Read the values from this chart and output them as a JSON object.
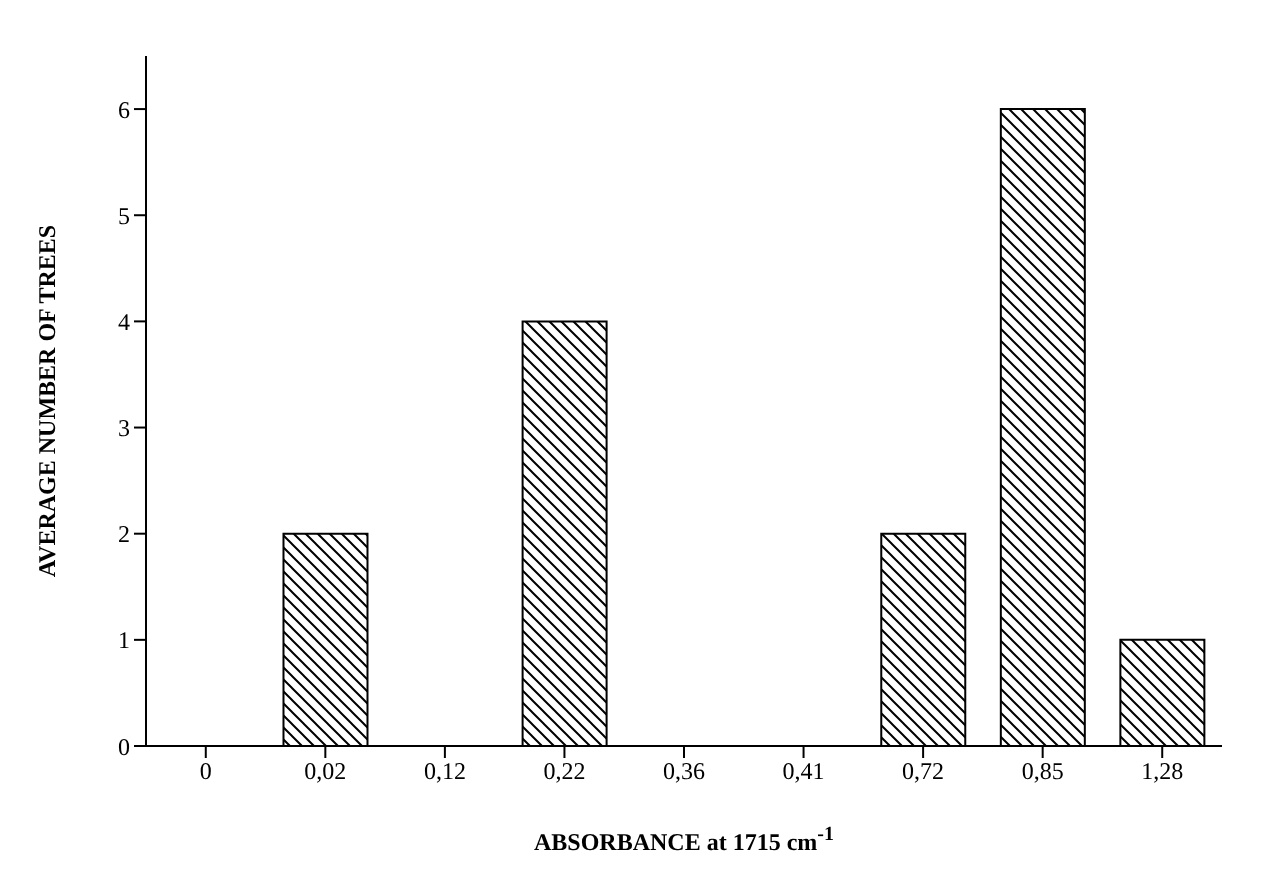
{
  "chart_data": {
    "type": "bar",
    "xlabel": "ABSORBANCE at 1715  cm$^{-1}$",
    "ylabel": "AVERAGE NUMBER OF TREES",
    "categories": [
      "0",
      "0,02",
      "0,12",
      "0,22",
      "0,36",
      "0,41",
      "0,72",
      "0,85",
      "1,28"
    ],
    "values": [
      0,
      2,
      0,
      4,
      0,
      0,
      2,
      6,
      1
    ],
    "color": "#000000",
    "ylim": [
      0,
      6.5
    ],
    "yticks": [
      0,
      1,
      2,
      3,
      4,
      5,
      6
    ],
    "grid": false,
    "legend": false
  }
}
